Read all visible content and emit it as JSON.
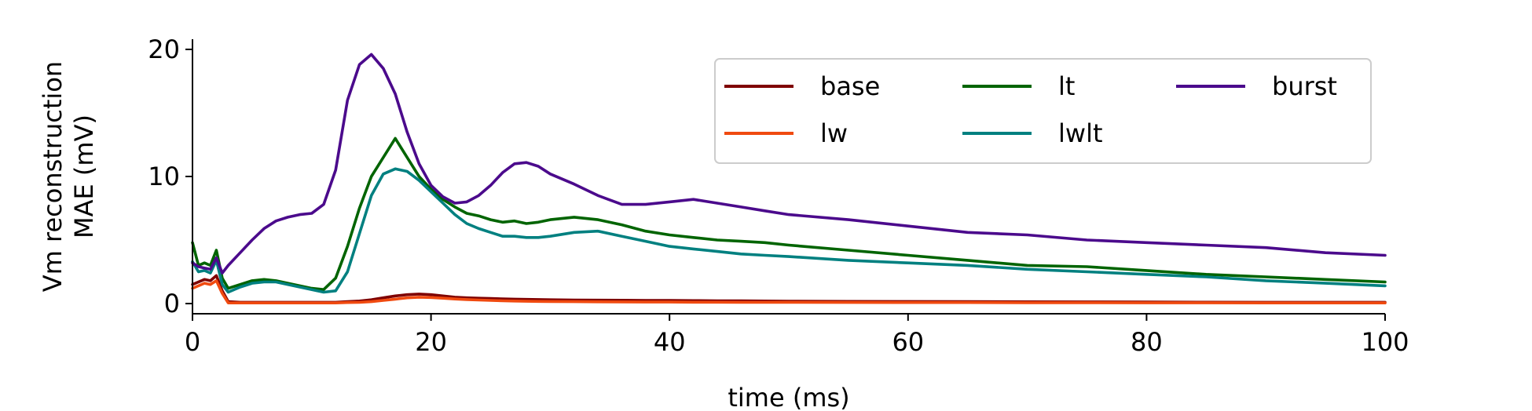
{
  "chart_data": {
    "type": "line",
    "title": "",
    "xlabel": "time (ms)",
    "ylabel_lines": [
      "Vm reconstruction",
      "MAE (mV)"
    ],
    "xlim": [
      0,
      100
    ],
    "ylim": [
      -0.8,
      20.8
    ],
    "xticks": [
      0,
      20,
      40,
      60,
      80,
      100
    ],
    "yticks": [
      0,
      10,
      20
    ],
    "grid": false,
    "legend_position": "top-right",
    "x": [
      0,
      0.5,
      1,
      1.5,
      2,
      2.5,
      3,
      4,
      5,
      6,
      7,
      8,
      9,
      10,
      11,
      12,
      13,
      14,
      15,
      16,
      17,
      18,
      19,
      20,
      21,
      22,
      23,
      24,
      25,
      26,
      27,
      28,
      29,
      30,
      32,
      34,
      36,
      38,
      40,
      42,
      44,
      46,
      48,
      50,
      55,
      60,
      65,
      70,
      75,
      80,
      85,
      90,
      95,
      100
    ],
    "series": [
      {
        "name": "base",
        "color": "#7f0000",
        "values": [
          1.5,
          1.7,
          1.9,
          1.8,
          2.2,
          1.0,
          0.15,
          0.1,
          0.1,
          0.1,
          0.1,
          0.1,
          0.1,
          0.1,
          0.1,
          0.1,
          0.15,
          0.2,
          0.3,
          0.45,
          0.6,
          0.7,
          0.75,
          0.7,
          0.6,
          0.5,
          0.45,
          0.42,
          0.4,
          0.37,
          0.35,
          0.33,
          0.32,
          0.3,
          0.28,
          0.27,
          0.26,
          0.25,
          0.24,
          0.23,
          0.22,
          0.21,
          0.2,
          0.19,
          0.17,
          0.16,
          0.15,
          0.14,
          0.13,
          0.12,
          0.11,
          0.1,
          0.1,
          0.1
        ]
      },
      {
        "name": "lw",
        "color": "#f04a10",
        "values": [
          1.2,
          1.4,
          1.6,
          1.5,
          1.8,
          0.8,
          0.05,
          0.05,
          0.05,
          0.05,
          0.05,
          0.05,
          0.05,
          0.05,
          0.05,
          0.05,
          0.08,
          0.1,
          0.15,
          0.25,
          0.35,
          0.45,
          0.5,
          0.48,
          0.42,
          0.36,
          0.32,
          0.28,
          0.25,
          0.22,
          0.2,
          0.18,
          0.17,
          0.16,
          0.15,
          0.14,
          0.13,
          0.12,
          0.12,
          0.11,
          0.11,
          0.1,
          0.1,
          0.1,
          0.09,
          0.08,
          0.08,
          0.07,
          0.07,
          0.06,
          0.06,
          0.05,
          0.05,
          0.05
        ]
      },
      {
        "name": "lt",
        "color": "#006400",
        "values": [
          4.8,
          3.0,
          3.2,
          3.0,
          4.2,
          2.0,
          1.2,
          1.5,
          1.8,
          1.9,
          1.8,
          1.6,
          1.4,
          1.2,
          1.1,
          2.0,
          4.5,
          7.5,
          10.0,
          11.5,
          13.0,
          11.5,
          10.0,
          9.0,
          8.2,
          7.6,
          7.1,
          6.9,
          6.6,
          6.4,
          6.5,
          6.3,
          6.4,
          6.6,
          6.8,
          6.6,
          6.2,
          5.7,
          5.4,
          5.2,
          5.0,
          4.9,
          4.8,
          4.6,
          4.2,
          3.8,
          3.4,
          3.0,
          2.9,
          2.6,
          2.3,
          2.1,
          1.9,
          1.7
        ]
      },
      {
        "name": "lwlt",
        "color": "#008080",
        "values": [
          3.3,
          2.5,
          2.6,
          2.4,
          3.4,
          1.5,
          0.9,
          1.3,
          1.6,
          1.7,
          1.7,
          1.5,
          1.3,
          1.1,
          0.9,
          1.0,
          2.5,
          5.5,
          8.5,
          10.2,
          10.6,
          10.4,
          9.7,
          8.8,
          7.9,
          7.0,
          6.3,
          5.9,
          5.6,
          5.3,
          5.3,
          5.2,
          5.2,
          5.3,
          5.6,
          5.7,
          5.3,
          4.9,
          4.5,
          4.3,
          4.1,
          3.9,
          3.8,
          3.7,
          3.4,
          3.2,
          3.0,
          2.7,
          2.5,
          2.3,
          2.1,
          1.8,
          1.6,
          1.4
        ]
      },
      {
        "name": "burst",
        "color": "#4b0a8c",
        "values": [
          3.2,
          2.9,
          2.8,
          2.7,
          3.6,
          2.4,
          3.0,
          4.0,
          5.0,
          5.9,
          6.5,
          6.8,
          7.0,
          7.1,
          7.8,
          10.5,
          16.0,
          18.8,
          19.6,
          18.5,
          16.5,
          13.5,
          11.0,
          9.3,
          8.4,
          7.9,
          8.0,
          8.5,
          9.3,
          10.3,
          11.0,
          11.1,
          10.8,
          10.2,
          9.4,
          8.5,
          7.8,
          7.8,
          8.0,
          8.2,
          7.9,
          7.6,
          7.3,
          7.0,
          6.6,
          6.1,
          5.6,
          5.4,
          5.0,
          4.8,
          4.6,
          4.4,
          4.0,
          3.8
        ]
      }
    ]
  }
}
